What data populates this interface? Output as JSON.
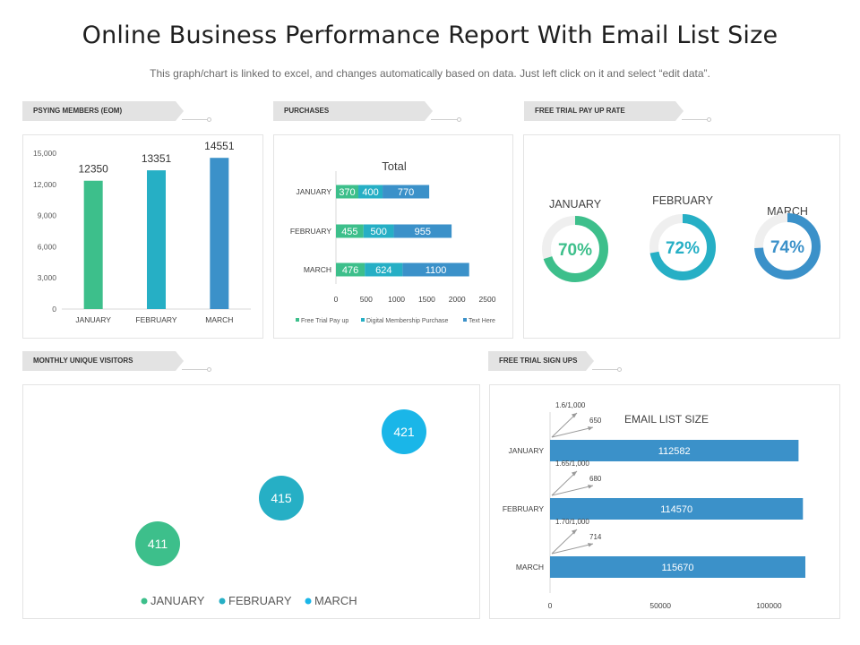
{
  "header": {
    "title": "Online Business Performance Report With Email List Size",
    "subtitle": "This graph/chart is linked to excel, and changes automatically based on data. Just left click on it and select “edit data”."
  },
  "sections": {
    "members": "PSYING MEMBERS (EOM)",
    "purchases": "PURCHASES",
    "trial_rate": "FREE TRIAL  PAY  UP RATE",
    "visitors": "MONTHLY  UNIQUE VISITORS",
    "signups": "FREE TRIAL  SIGN UPS"
  },
  "colors": {
    "green": "#3dbf8b",
    "teal": "#26afc5",
    "blue": "#3b91c9",
    "cyan": "#1ab6e8",
    "track": "#efefef",
    "grid": "#d9d9d9"
  },
  "chart_data": [
    {
      "id": "members",
      "type": "bar",
      "categories": [
        "JANUARY",
        "FEBRUARY",
        "MARCH"
      ],
      "values": [
        12350,
        13351,
        14551
      ],
      "ylim": [
        0,
        15000
      ],
      "yticks": [
        0,
        3000,
        6000,
        9000,
        12000,
        15000
      ],
      "ytick_labels": [
        "0",
        "3,000",
        "6,000",
        "9,000",
        "12,000",
        "15,000"
      ]
    },
    {
      "id": "purchases",
      "type": "bar",
      "orientation": "horizontal-stacked",
      "title": "Total",
      "categories": [
        "JANUARY",
        "FEBRUARY",
        "MARCH"
      ],
      "series": [
        {
          "name": "Free Trial Pay up",
          "values": [
            370,
            455,
            476
          ]
        },
        {
          "name": "Digital Membership Purchase",
          "values": [
            400,
            500,
            624
          ]
        },
        {
          "name": "Text Here",
          "values": [
            770,
            955,
            1100
          ]
        }
      ],
      "xlim": [
        0,
        2500
      ],
      "xticks": [
        0,
        500,
        1000,
        1500,
        2000,
        2500
      ]
    },
    {
      "id": "trial_rate",
      "type": "pie",
      "style": "donut",
      "items": [
        {
          "label": "JANUARY",
          "value": 70,
          "text": "70%"
        },
        {
          "label": "FEBRUARY",
          "value": 72,
          "text": "72%"
        },
        {
          "label": "MARCH",
          "value": 74,
          "text": "74%"
        }
      ]
    },
    {
      "id": "visitors",
      "type": "scatter",
      "style": "bubble",
      "points": [
        {
          "name": "JANUARY",
          "value": 411
        },
        {
          "name": "FEBRUARY",
          "value": 415
        },
        {
          "name": "MARCH",
          "value": 421
        }
      ],
      "legend": [
        "JANUARY",
        "FEBRUARY",
        "MARCH"
      ]
    },
    {
      "id": "signups",
      "type": "bar",
      "orientation": "horizontal",
      "title": "EMAIL LIST SIZE",
      "categories": [
        "JANUARY",
        "FEBRUARY",
        "MARCH"
      ],
      "values": [
        112582,
        114570,
        115670
      ],
      "value_labels": [
        "112582",
        "114570",
        "115670"
      ],
      "annotations": [
        {
          "ratio": "1.6/1,000",
          "signups": "650"
        },
        {
          "ratio": "1.65/1,000",
          "signups": "680"
        },
        {
          "ratio": "1.70/1,000",
          "signups": "714"
        }
      ],
      "xlim": [
        0,
        115670
      ],
      "xticks": [
        0,
        50000,
        100000
      ]
    }
  ]
}
